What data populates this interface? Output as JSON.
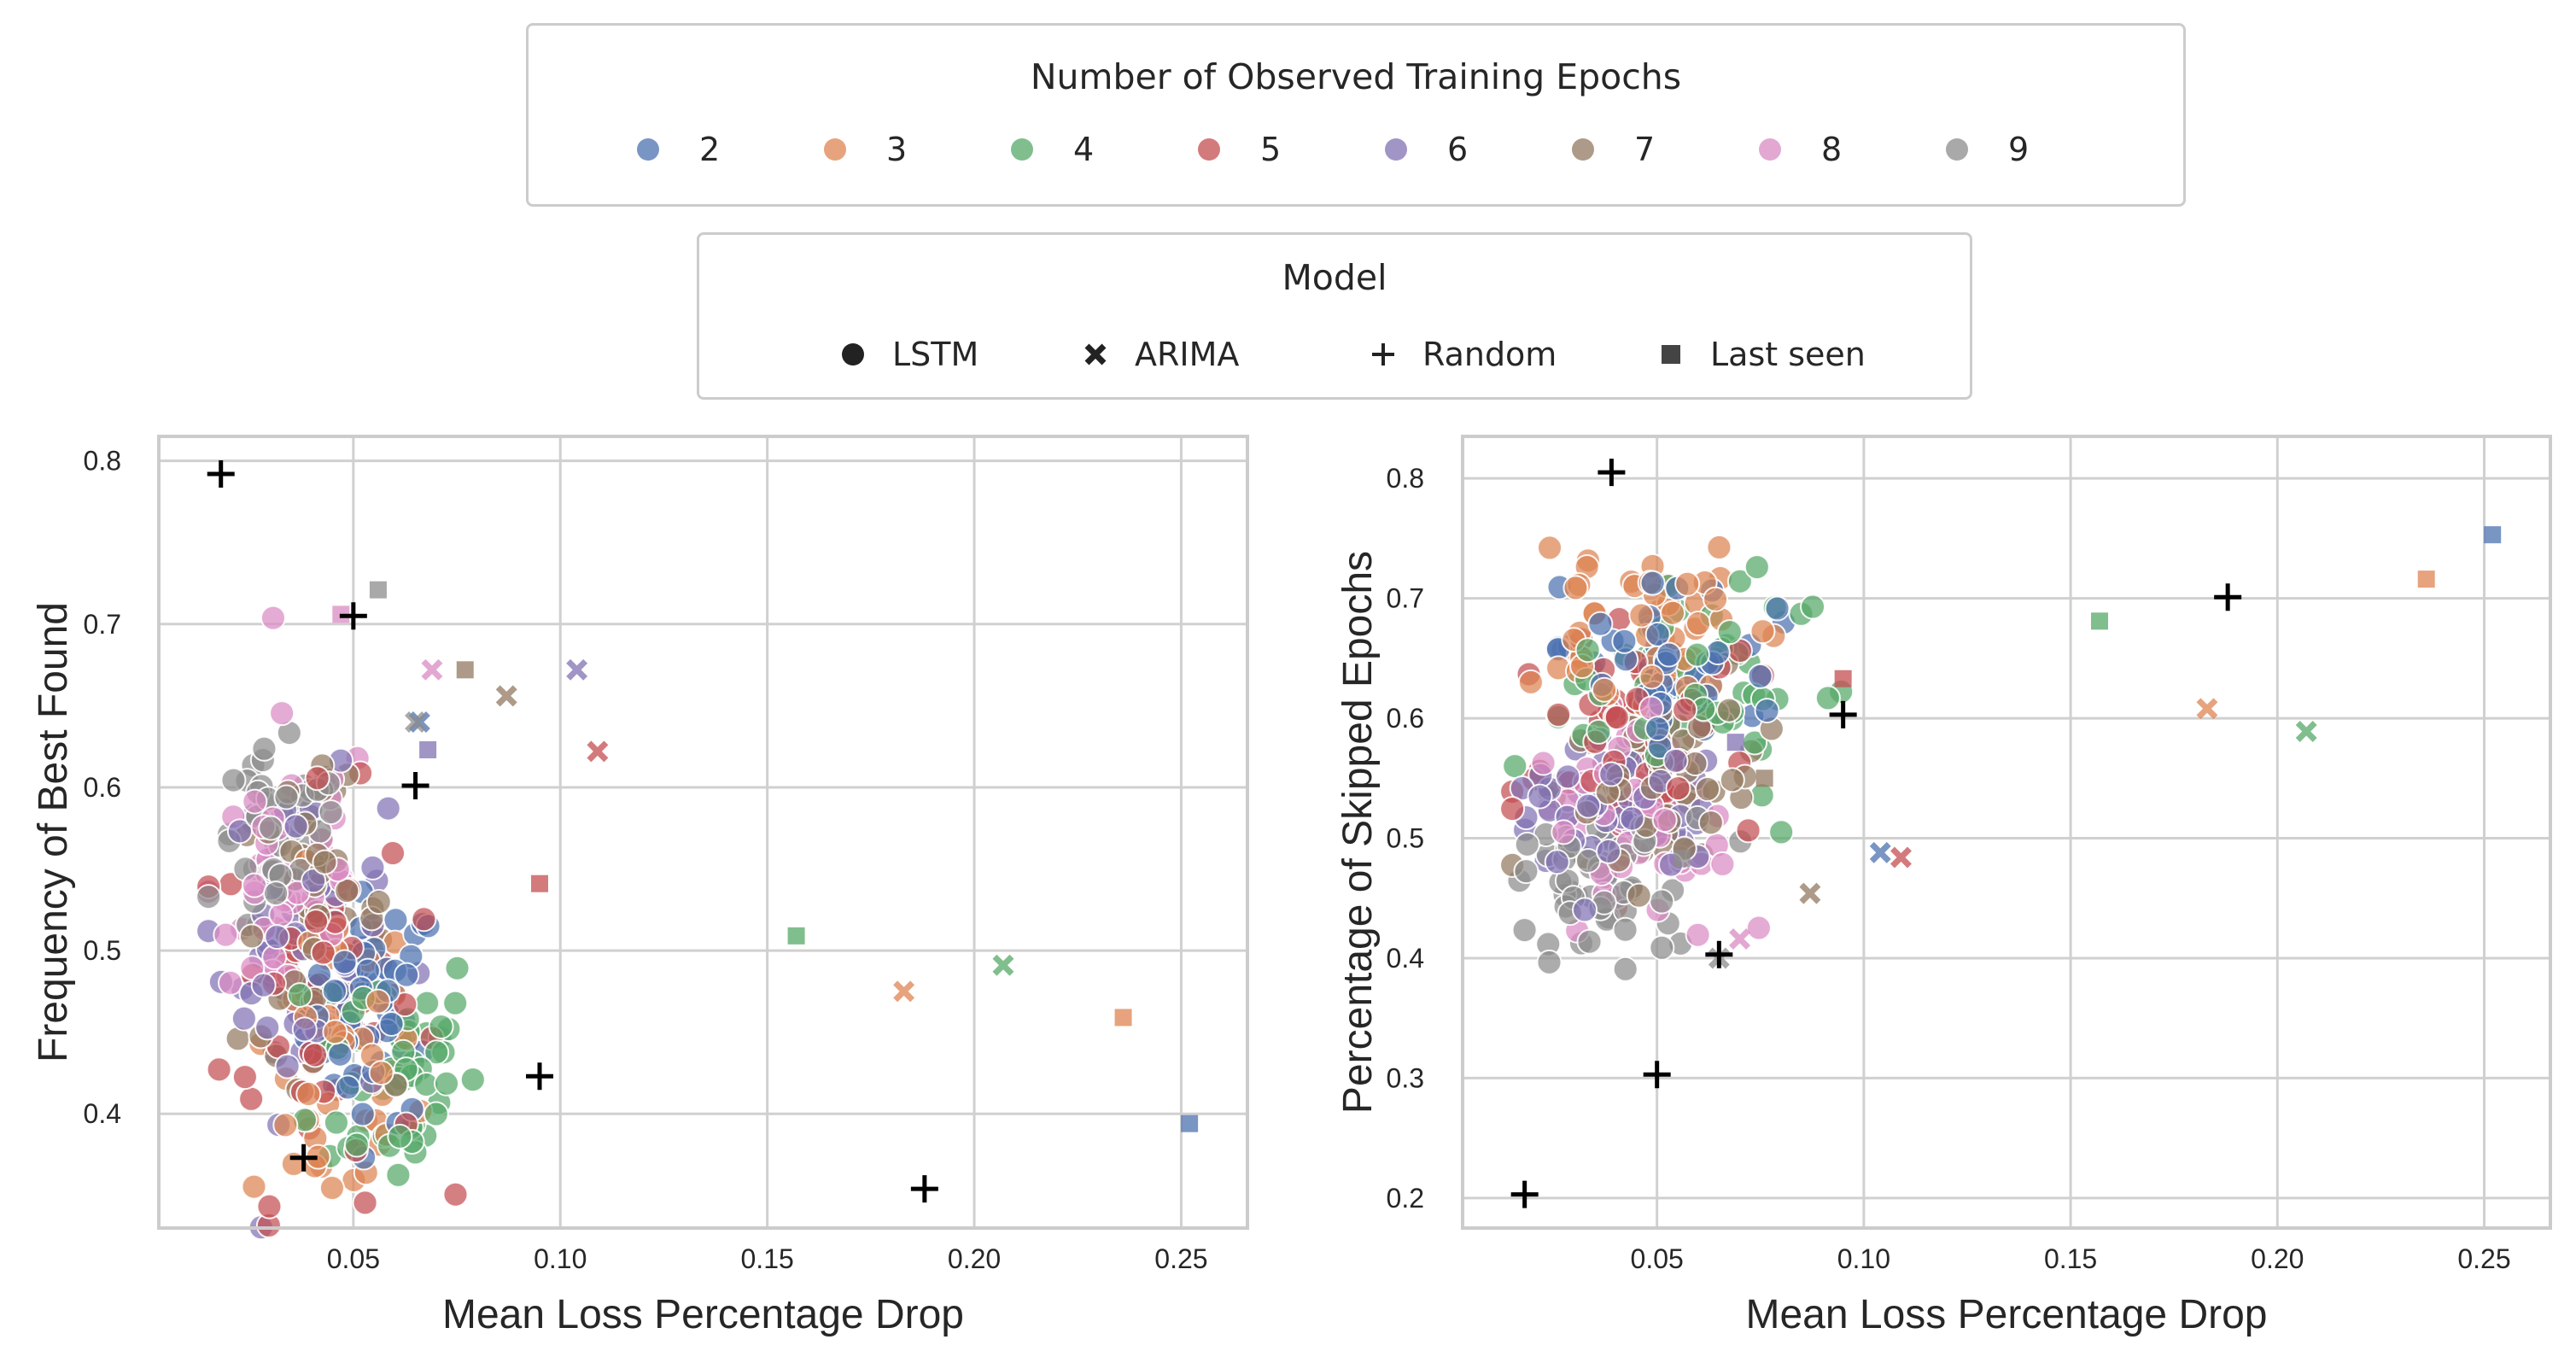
{
  "legends": {
    "epochs": {
      "title": "Number of Observed Training Epochs",
      "items": [
        {
          "label": "2",
          "color": "#4c72b0"
        },
        {
          "label": "3",
          "color": "#dd8452"
        },
        {
          "label": "4",
          "color": "#55a868"
        },
        {
          "label": "5",
          "color": "#c44e52"
        },
        {
          "label": "6",
          "color": "#8172b3"
        },
        {
          "label": "7",
          "color": "#937860"
        },
        {
          "label": "8",
          "color": "#da8bc3"
        },
        {
          "label": "9",
          "color": "#8c8c8c"
        }
      ]
    },
    "model": {
      "title": "Model",
      "items": [
        {
          "label": "LSTM",
          "marker": "circle"
        },
        {
          "label": "ARIMA",
          "marker": "x"
        },
        {
          "label": "Random",
          "marker": "plus"
        },
        {
          "label": "Last seen",
          "marker": "square"
        }
      ]
    }
  },
  "chart_data": [
    {
      "type": "scatter",
      "xlabel": "Mean Loss Percentage Drop",
      "ylabel": "Frequency of Best Found",
      "xlim": [
        0.003,
        0.266
      ],
      "ylim": [
        0.33,
        0.815
      ],
      "xticks": [
        0.05,
        0.1,
        0.15,
        0.2,
        0.25
      ],
      "xtick_labels": [
        "0.05",
        "0.10",
        "0.15",
        "0.20",
        "0.25"
      ],
      "yticks": [
        0.4,
        0.5,
        0.6,
        0.7,
        0.8
      ],
      "ytick_labels": [
        "0.4",
        "0.5",
        "0.6",
        "0.7",
        "0.8"
      ],
      "grid": true,
      "lstm_clusters": {
        "2": {
          "xc": 0.055,
          "yc": 0.465,
          "sx": 0.008,
          "sy": 0.035
        },
        "3": {
          "xc": 0.045,
          "yc": 0.43,
          "sx": 0.01,
          "sy": 0.05
        },
        "4": {
          "xc": 0.06,
          "yc": 0.43,
          "sx": 0.01,
          "sy": 0.04
        },
        "5": {
          "xc": 0.042,
          "yc": 0.47,
          "sx": 0.012,
          "sy": 0.06
        },
        "6": {
          "xc": 0.038,
          "yc": 0.5,
          "sx": 0.01,
          "sy": 0.05
        },
        "7": {
          "xc": 0.04,
          "yc": 0.52,
          "sx": 0.009,
          "sy": 0.04
        },
        "8": {
          "xc": 0.035,
          "yc": 0.54,
          "sx": 0.01,
          "sy": 0.05
        },
        "9": {
          "xc": 0.032,
          "yc": 0.56,
          "sx": 0.008,
          "sy": 0.03
        }
      },
      "arima": [
        {
          "epochs": "2",
          "x": 0.066,
          "y": 0.64
        },
        {
          "epochs": "3",
          "x": 0.183,
          "y": 0.475
        },
        {
          "epochs": "4",
          "x": 0.207,
          "y": 0.491
        },
        {
          "epochs": "5",
          "x": 0.109,
          "y": 0.622
        },
        {
          "epochs": "6",
          "x": 0.104,
          "y": 0.672
        },
        {
          "epochs": "7",
          "x": 0.087,
          "y": 0.656
        },
        {
          "epochs": "8",
          "x": 0.069,
          "y": 0.672
        },
        {
          "epochs": "9",
          "x": 0.065,
          "y": 0.64
        }
      ],
      "last_seen": [
        {
          "epochs": "2",
          "x": 0.252,
          "y": 0.394
        },
        {
          "epochs": "3",
          "x": 0.236,
          "y": 0.459
        },
        {
          "epochs": "4",
          "x": 0.157,
          "y": 0.509
        },
        {
          "epochs": "5",
          "x": 0.095,
          "y": 0.541
        },
        {
          "epochs": "6",
          "x": 0.068,
          "y": 0.623
        },
        {
          "epochs": "7",
          "x": 0.077,
          "y": 0.672
        },
        {
          "epochs": "8",
          "x": 0.047,
          "y": 0.706
        },
        {
          "epochs": "9",
          "x": 0.056,
          "y": 0.721
        }
      ],
      "random": [
        {
          "x": 0.018,
          "y": 0.792
        },
        {
          "x": 0.05,
          "y": 0.705
        },
        {
          "x": 0.065,
          "y": 0.601
        },
        {
          "x": 0.095,
          "y": 0.423
        },
        {
          "x": 0.038,
          "y": 0.373
        },
        {
          "x": 0.188,
          "y": 0.354
        }
      ]
    },
    {
      "type": "scatter",
      "xlabel": "Mean Loss Percentage Drop",
      "ylabel": "Percentage of Skipped Epochs",
      "xlim": [
        0.003,
        0.266
      ],
      "ylim": [
        0.175,
        0.835
      ],
      "xticks": [
        0.05,
        0.1,
        0.15,
        0.2,
        0.25
      ],
      "xtick_labels": [
        "0.05",
        "0.10",
        "0.15",
        "0.20",
        "0.25"
      ],
      "yticks": [
        0.2,
        0.3,
        0.4,
        0.5,
        0.6,
        0.7,
        0.8
      ],
      "ytick_labels": [
        "0.2",
        "0.3",
        "0.4",
        "0.5",
        "0.6",
        "0.7",
        "0.8"
      ],
      "grid": true,
      "lstm_clusters": {
        "2": {
          "xc": 0.05,
          "yc": 0.64,
          "sx": 0.012,
          "sy": 0.035
        },
        "3": {
          "xc": 0.045,
          "yc": 0.68,
          "sx": 0.012,
          "sy": 0.04
        },
        "4": {
          "xc": 0.06,
          "yc": 0.63,
          "sx": 0.015,
          "sy": 0.045
        },
        "5": {
          "xc": 0.045,
          "yc": 0.58,
          "sx": 0.013,
          "sy": 0.05
        },
        "6": {
          "xc": 0.04,
          "yc": 0.53,
          "sx": 0.012,
          "sy": 0.04
        },
        "7": {
          "xc": 0.05,
          "yc": 0.55,
          "sx": 0.013,
          "sy": 0.04
        },
        "8": {
          "xc": 0.045,
          "yc": 0.52,
          "sx": 0.013,
          "sy": 0.04
        },
        "9": {
          "xc": 0.035,
          "yc": 0.46,
          "sx": 0.01,
          "sy": 0.03
        }
      },
      "arima": [
        {
          "epochs": "2",
          "x": 0.104,
          "y": 0.488
        },
        {
          "epochs": "3",
          "x": 0.183,
          "y": 0.608
        },
        {
          "epochs": "4",
          "x": 0.207,
          "y": 0.589
        },
        {
          "epochs": "5",
          "x": 0.109,
          "y": 0.484
        },
        {
          "epochs": "7",
          "x": 0.087,
          "y": 0.454
        },
        {
          "epochs": "8",
          "x": 0.07,
          "y": 0.416
        },
        {
          "epochs": "9",
          "x": 0.065,
          "y": 0.4
        }
      ],
      "last_seen": [
        {
          "epochs": "2",
          "x": 0.252,
          "y": 0.753
        },
        {
          "epochs": "3",
          "x": 0.236,
          "y": 0.716
        },
        {
          "epochs": "4",
          "x": 0.157,
          "y": 0.681
        },
        {
          "epochs": "5",
          "x": 0.095,
          "y": 0.633
        },
        {
          "epochs": "6",
          "x": 0.069,
          "y": 0.58
        },
        {
          "epochs": "7",
          "x": 0.076,
          "y": 0.55
        },
        {
          "epochs": "9",
          "x": 0.056,
          "y": 0.483
        }
      ],
      "random": [
        {
          "x": 0.039,
          "y": 0.805
        },
        {
          "x": 0.188,
          "y": 0.701
        },
        {
          "x": 0.095,
          "y": 0.603
        },
        {
          "x": 0.065,
          "y": 0.403
        },
        {
          "x": 0.05,
          "y": 0.303
        },
        {
          "x": 0.018,
          "y": 0.203
        }
      ]
    }
  ]
}
